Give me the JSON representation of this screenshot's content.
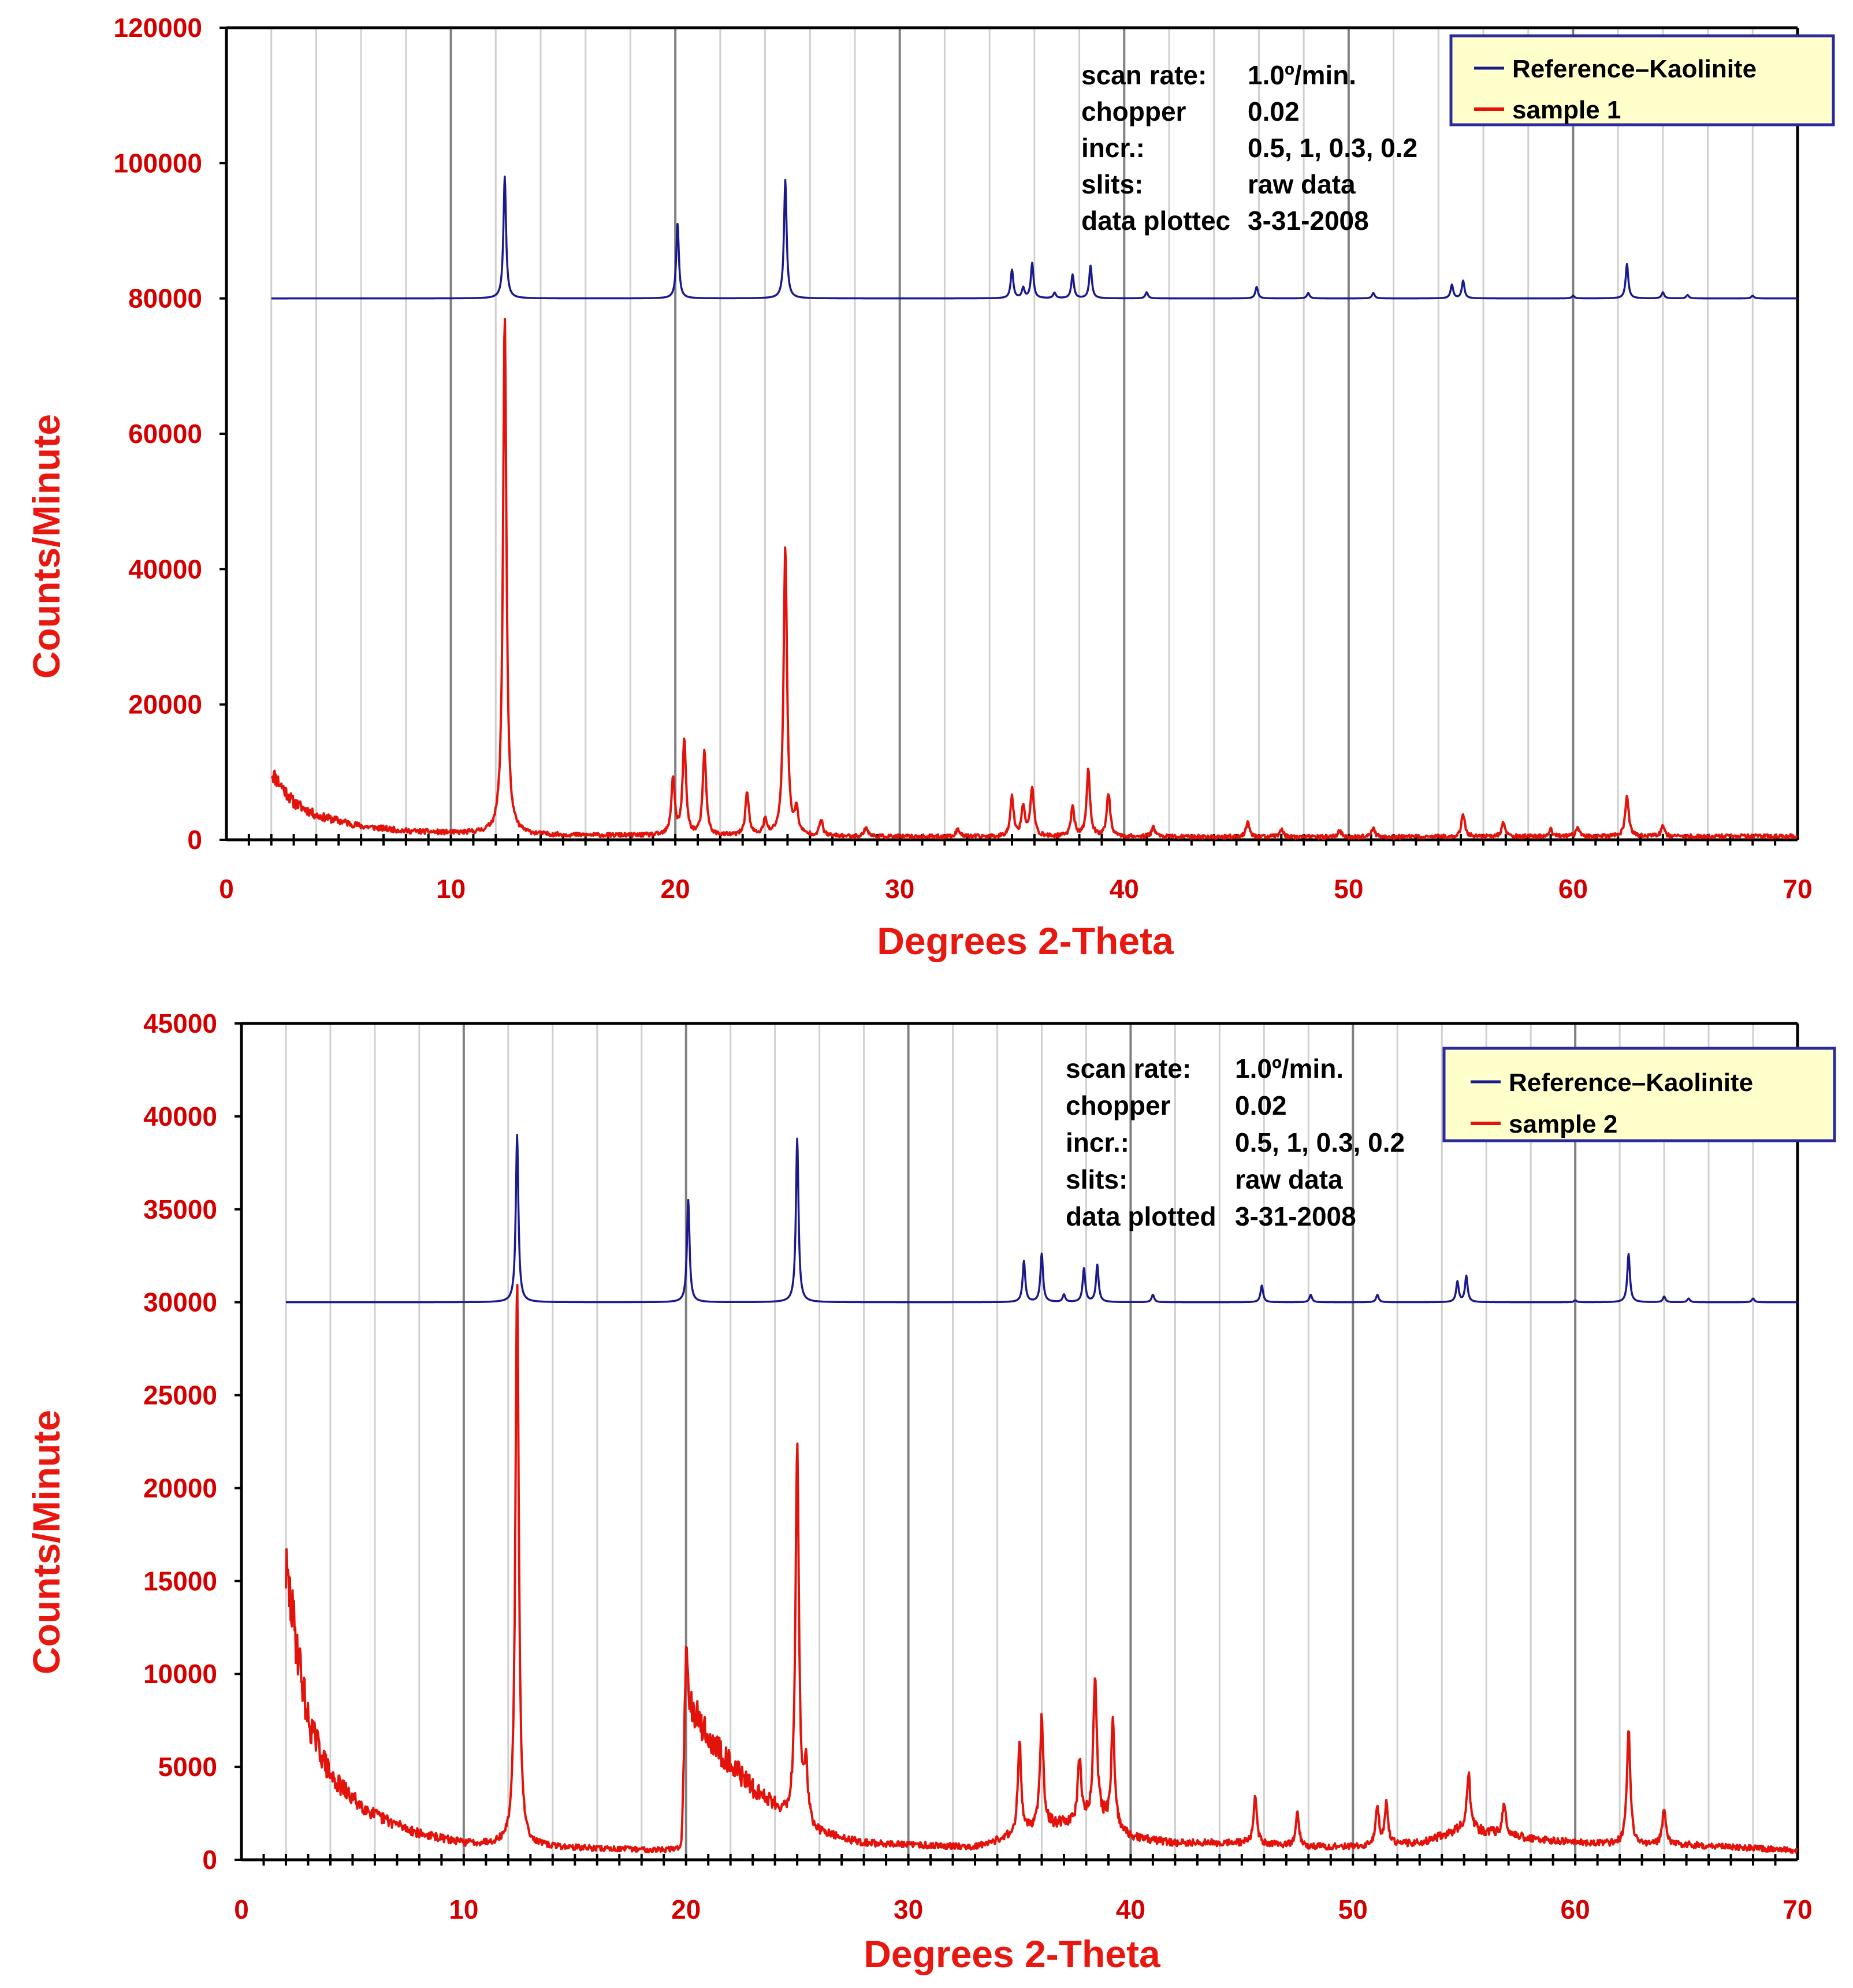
{
  "colors": {
    "reference": "#1a1a8c",
    "sample": "#e3120b",
    "axis_text": "#d40000",
    "legend_fill": "#ffffcc",
    "legend_border": "#2b2b9c",
    "grid_major": "#808080",
    "grid_minor": "#d0d0d0"
  },
  "chart_data": [
    {
      "type": "line",
      "xlabel": "Degrees 2-Theta",
      "ylabel": "Counts/Minute",
      "xlim": [
        0,
        70
      ],
      "ylim": [
        0,
        120000
      ],
      "xticks": [
        0,
        10,
        20,
        30,
        40,
        50,
        60,
        70
      ],
      "yticks": [
        0,
        20000,
        40000,
        60000,
        80000,
        100000,
        120000
      ],
      "grid": "vertical, major every 10, minor every 2",
      "legend": {
        "position": "top-right",
        "entries": [
          "Reference–Kaolinite",
          "sample 1"
        ]
      },
      "info": [
        [
          "scan rate:",
          "1.0º/min."
        ],
        [
          "chopper",
          "0.02"
        ],
        [
          "incr.:",
          "0.5, 1, 0.3, 0.2"
        ],
        [
          "slits:",
          "raw data"
        ],
        [
          "data plottec",
          "3-31-2008"
        ]
      ],
      "series": [
        {
          "name": "Reference–Kaolinite",
          "x_range": [
            2,
            70
          ],
          "baseline": 80000,
          "peaks": [
            [
              12.4,
              98000
            ],
            [
              20.1,
              91000
            ],
            [
              24.9,
              97500
            ],
            [
              35.0,
              84200
            ],
            [
              35.5,
              81500
            ],
            [
              35.9,
              85200
            ],
            [
              36.9,
              80800
            ],
            [
              37.7,
              83500
            ],
            [
              38.5,
              84800
            ],
            [
              41.0,
              80900
            ],
            [
              45.9,
              81700
            ],
            [
              48.2,
              80800
            ],
            [
              51.1,
              80800
            ],
            [
              54.6,
              82000
            ],
            [
              55.1,
              82600
            ],
            [
              60.0,
              80400
            ],
            [
              62.4,
              85100
            ],
            [
              64.0,
              80900
            ],
            [
              65.1,
              80500
            ],
            [
              68.0,
              80400
            ]
          ]
        },
        {
          "name": "sample 1",
          "x_range": [
            2,
            70
          ],
          "background": [
            [
              2,
              10000
            ],
            [
              3,
              5500
            ],
            [
              4,
              3600
            ],
            [
              6,
              2000
            ],
            [
              8,
              1300
            ],
            [
              10,
              1000
            ],
            [
              11.5,
              950
            ],
            [
              14,
              700
            ],
            [
              20,
              600
            ],
            [
              30,
              450
            ],
            [
              40,
              450
            ],
            [
              50,
              400
            ],
            [
              60,
              500
            ],
            [
              70,
              500
            ]
          ],
          "peaks": [
            [
              12.4,
              77000
            ],
            [
              19.9,
              8500
            ],
            [
              20.4,
              14000
            ],
            [
              21.3,
              12500
            ],
            [
              23.2,
              6500
            ],
            [
              24.0,
              2200
            ],
            [
              24.9,
              43000
            ],
            [
              25.4,
              3500
            ],
            [
              26.5,
              2300
            ],
            [
              28.5,
              1400
            ],
            [
              32.6,
              1200
            ],
            [
              35.0,
              5800
            ],
            [
              35.5,
              4500
            ],
            [
              35.9,
              7300
            ],
            [
              37.7,
              4500
            ],
            [
              38.4,
              9800
            ],
            [
              39.3,
              6500
            ],
            [
              41.3,
              1500
            ],
            [
              45.5,
              2200
            ],
            [
              47.0,
              1200
            ],
            [
              49.6,
              1000
            ],
            [
              51.1,
              1300
            ],
            [
              55.1,
              3400
            ],
            [
              56.9,
              2100
            ],
            [
              59.0,
              1000
            ],
            [
              60.2,
              1200
            ],
            [
              62.4,
              6200
            ],
            [
              64.0,
              1500
            ]
          ]
        }
      ]
    },
    {
      "type": "line",
      "xlabel": "Degrees 2-Theta",
      "ylabel": "Counts/Minute",
      "xlim": [
        0,
        70
      ],
      "ylim": [
        0,
        45000
      ],
      "xticks": [
        0,
        10,
        20,
        30,
        40,
        50,
        60,
        70
      ],
      "yticks": [
        0,
        5000,
        10000,
        15000,
        20000,
        25000,
        30000,
        35000,
        40000,
        45000
      ],
      "grid": "vertical, major every 10, minor every 2",
      "legend": {
        "position": "top-right",
        "entries": [
          "Reference–Kaolinite",
          "sample 2"
        ]
      },
      "info": [
        [
          "scan rate:",
          "1.0º/min."
        ],
        [
          "chopper",
          "0.02"
        ],
        [
          "incr.:",
          "0.5, 1, 0.3, 0.2"
        ],
        [
          "slits:",
          "raw data"
        ],
        [
          "data plotted",
          "3-31-2008"
        ]
      ],
      "series": [
        {
          "name": "Reference–Kaolinite",
          "x_range": [
            2,
            70
          ],
          "baseline": 30000,
          "peaks": [
            [
              12.4,
              39000
            ],
            [
              20.1,
              35500
            ],
            [
              25.0,
              38800
            ],
            [
              35.2,
              32200
            ],
            [
              36.0,
              32600
            ],
            [
              37.0,
              30400
            ],
            [
              37.9,
              31800
            ],
            [
              38.5,
              32000
            ],
            [
              41.0,
              30400
            ],
            [
              45.9,
              30900
            ],
            [
              48.1,
              30400
            ],
            [
              51.1,
              30400
            ],
            [
              54.7,
              31100
            ],
            [
              55.1,
              31400
            ],
            [
              60.0,
              30100
            ],
            [
              62.4,
              32600
            ],
            [
              64.0,
              30300
            ],
            [
              65.1,
              30200
            ],
            [
              68.0,
              30200
            ]
          ]
        },
        {
          "name": "sample 2",
          "x_range": [
            2,
            70
          ],
          "background": [
            [
              2,
              15500
            ],
            [
              2.5,
              11500
            ],
            [
              3,
              7500
            ],
            [
              4,
              4500
            ],
            [
              5,
              3300
            ],
            [
              6,
              2400
            ],
            [
              8,
              1400
            ],
            [
              10,
              900
            ],
            [
              11.5,
              850
            ],
            [
              13.5,
              700
            ],
            [
              16,
              600
            ],
            [
              19.8,
              500
            ],
            [
              20,
              8800
            ],
            [
              21,
              6500
            ],
            [
              22,
              5200
            ],
            [
              23,
              3800
            ],
            [
              24,
              2900
            ],
            [
              24.5,
              2400
            ],
            [
              26,
              1400
            ],
            [
              28,
              900
            ],
            [
              30,
              800
            ],
            [
              33,
              700
            ],
            [
              34.5,
              1200
            ],
            [
              36,
              1800
            ],
            [
              37.5,
              2000
            ],
            [
              38.5,
              2400
            ],
            [
              40,
              1200
            ],
            [
              42,
              900
            ],
            [
              45,
              900
            ],
            [
              48,
              700
            ],
            [
              50,
              700
            ],
            [
              53,
              900
            ],
            [
              55,
              1700
            ],
            [
              57,
              1300
            ],
            [
              60,
              900
            ],
            [
              65,
              800
            ],
            [
              70,
              500
            ]
          ],
          "peaks": [
            [
              12.4,
              30500
            ],
            [
              20.0,
              2500
            ],
            [
              25.0,
              20200
            ],
            [
              25.4,
              3000
            ],
            [
              35.0,
              5000
            ],
            [
              36.0,
              5800
            ],
            [
              37.7,
              3300
            ],
            [
              38.4,
              7700
            ],
            [
              39.2,
              5500
            ],
            [
              45.6,
              2500
            ],
            [
              47.5,
              1800
            ],
            [
              51.1,
              2000
            ],
            [
              51.5,
              2200
            ],
            [
              55.2,
              3000
            ],
            [
              56.8,
              1800
            ],
            [
              62.4,
              6200
            ],
            [
              64.0,
              2000
            ]
          ]
        }
      ]
    }
  ]
}
